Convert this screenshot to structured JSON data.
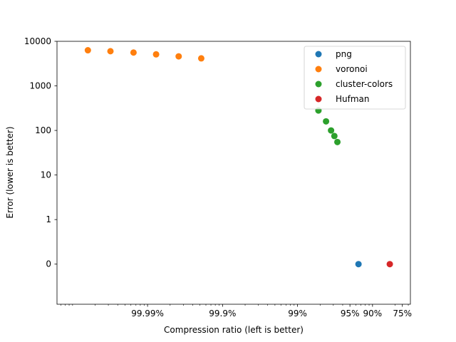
{
  "chart_data": {
    "type": "scatter",
    "title": "",
    "xlabel": "Compression ratio (left is better)",
    "ylabel": "Error (lower is better)",
    "x_scale": "log of remaining fraction (1 - compression ratio)",
    "y_scale": "symlog",
    "xlim_remaining_fraction": [
      6.2e-06,
      0.32
    ],
    "x_ticks": [
      {
        "value": 0.0001,
        "label": "99.99%"
      },
      {
        "value": 0.001,
        "label": "99.9%"
      },
      {
        "value": 0.01,
        "label": "99%"
      },
      {
        "value": 0.05,
        "label": "95%"
      },
      {
        "value": 0.1,
        "label": "90%"
      },
      {
        "value": 0.25,
        "label": "75%"
      }
    ],
    "y_ticks": [
      {
        "value": 0,
        "label": "0"
      },
      {
        "value": 1,
        "label": "1"
      },
      {
        "value": 10,
        "label": "10"
      },
      {
        "value": 100,
        "label": "100"
      },
      {
        "value": 1000,
        "label": "1000"
      },
      {
        "value": 10000,
        "label": "10000"
      }
    ],
    "legend_position": "top-right",
    "grid": false,
    "series": [
      {
        "name": "png",
        "color": "#1f77b4",
        "points": [
          [
            0.065,
            0
          ]
        ]
      },
      {
        "name": "voronoi",
        "color": "#ff7f0e",
        "points": [
          [
            1.6e-05,
            6300
          ],
          [
            3.2e-05,
            6000
          ],
          [
            6.5e-05,
            5600
          ],
          [
            0.00013,
            5100
          ],
          [
            0.00026,
            4600
          ],
          [
            0.00052,
            4150
          ]
        ]
      },
      {
        "name": "cluster-colors",
        "color": "#2ca02c",
        "points": [
          [
            0.019,
            280
          ],
          [
            0.024,
            160
          ],
          [
            0.028,
            100
          ],
          [
            0.031,
            75
          ],
          [
            0.034,
            55
          ]
        ]
      },
      {
        "name": "Hufman",
        "color": "#d62728",
        "points": [
          [
            0.17,
            0
          ]
        ]
      }
    ]
  }
}
